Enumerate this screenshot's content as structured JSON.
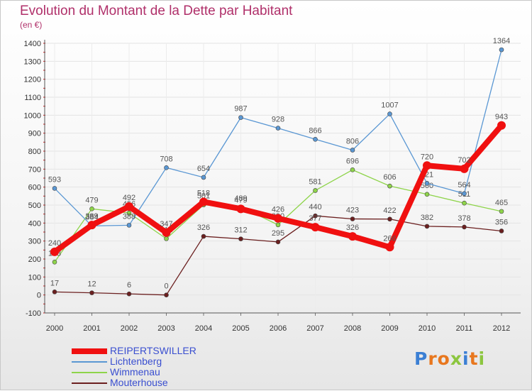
{
  "title": "Evolution du Montant de la Dette par Habitant",
  "subtitle": "(en €)",
  "logo": {
    "text": "Proxiti",
    "letters": [
      {
        "ch": "P",
        "color": "#3b7fd4"
      },
      {
        "ch": "r",
        "color": "#e8771e"
      },
      {
        "ch": "o",
        "color": "#e8771e"
      },
      {
        "ch": "x",
        "color": "#8cc63f"
      },
      {
        "ch": "i",
        "color": "#3b7fd4"
      },
      {
        "ch": "t",
        "color": "#e8771e"
      },
      {
        "ch": "i",
        "color": "#8cc63f"
      }
    ]
  },
  "chart_data": {
    "type": "line",
    "x": [
      "2000",
      "2001",
      "2002",
      "2003",
      "2004",
      "2005",
      "2006",
      "2007",
      "2008",
      "2009",
      "2010",
      "2011",
      "2012"
    ],
    "ylim": [
      -100,
      1400
    ],
    "yticks": [
      -100,
      0,
      100,
      200,
      300,
      400,
      500,
      600,
      700,
      800,
      900,
      1000,
      1100,
      1200,
      1300,
      1400
    ],
    "grid": true,
    "legend_position": "bottom-left",
    "series": [
      {
        "name": "Mouterhouse",
        "color": "#6b1f1f",
        "values": [
          17,
          12,
          6,
          0,
          326,
          312,
          295,
          440,
          423,
          422,
          382,
          378,
          356
        ],
        "labels": [
          "17",
          "12",
          "6",
          "0",
          "326",
          "312",
          "295",
          "440",
          "423",
          "422",
          "382",
          "378",
          "356"
        ]
      },
      {
        "name": "Wimmenau",
        "color": "#8ed44a",
        "values": [
          183,
          479,
          456,
          313,
          501,
          489,
          390,
          581,
          696,
          606,
          560,
          511,
          465
        ],
        "labels": [
          "183",
          "479",
          "456",
          "313",
          "501",
          "489",
          "390",
          "581",
          "696",
          "606",
          "560",
          "511",
          "465"
        ]
      },
      {
        "name": "Lichtenberg",
        "color": "#5a97d3",
        "values": [
          593,
          384,
          388,
          708,
          654,
          987,
          928,
          866,
          806,
          1007,
          621,
          564,
          1364
        ],
        "labels": [
          "593",
          "384",
          "388",
          "708",
          "654",
          "987",
          "928",
          "866",
          "806",
          "1007",
          "621",
          "564",
          "1364"
        ]
      },
      {
        "name": "REIPERTSWILLER",
        "color": "#f01010",
        "values": [
          240,
          389,
          492,
          347,
          518,
          479,
          426,
          377,
          326,
          266,
          720,
          702,
          943
        ],
        "labels": [
          "240",
          "389",
          "492",
          "347",
          "518",
          "479",
          "426",
          "377",
          "326",
          "266",
          "720",
          "702",
          "943"
        ]
      }
    ],
    "legend_order": [
      "REIPERTSWILLER",
      "Lichtenberg",
      "Wimmenau",
      "Mouterhouse"
    ]
  }
}
